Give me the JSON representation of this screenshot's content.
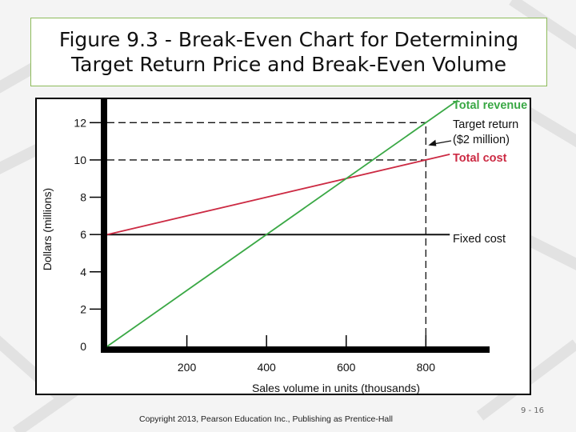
{
  "slide": {
    "title_line1": "Figure 9.3 - Break-Even Chart for Determining",
    "title_line2": "Target Return Price and Break-Even Volume",
    "copyright": "Copyright 2013, Pearson Education Inc., Publishing as Prentice-Hall",
    "slide_number": "9 - 16"
  },
  "colors": {
    "total_revenue": "#3aa845",
    "total_cost": "#cc2a43",
    "fixed_cost": "#111111",
    "frame_border": "#8dbb5a"
  },
  "chart_data": {
    "type": "line",
    "title": "",
    "xlabel": "Sales volume in units (thousands)",
    "ylabel": "Dollars (millions)",
    "xlim": [
      0,
      960
    ],
    "ylim": [
      0,
      13
    ],
    "x_ticks": [
      200,
      400,
      600,
      800
    ],
    "x_tick_labels": [
      "200",
      "400",
      "600",
      "800"
    ],
    "y_ticks": [
      0,
      2,
      4,
      6,
      8,
      10,
      12
    ],
    "y_tick_labels": [
      "0",
      "2",
      "4",
      "6",
      "8",
      "10",
      "12"
    ],
    "grid": false,
    "series": [
      {
        "name": "Total revenue",
        "x": [
          0,
          880
        ],
        "y": [
          0,
          13.2
        ]
      },
      {
        "name": "Total cost",
        "x": [
          0,
          860
        ],
        "y": [
          6,
          10.3
        ]
      },
      {
        "name": "Fixed cost",
        "x": [
          0,
          860
        ],
        "y": [
          6,
          6
        ]
      }
    ],
    "reference_lines": [
      {
        "y": 12,
        "x_end": 800
      },
      {
        "y": 10,
        "x_end": 800
      },
      {
        "x": 800,
        "y_start": 0,
        "y_end": 12
      }
    ],
    "annotations": [
      {
        "text_line1": "Target return",
        "text_line2": "($2 million)",
        "x": 800,
        "y_top": 12,
        "y_bottom": 10
      }
    ]
  }
}
